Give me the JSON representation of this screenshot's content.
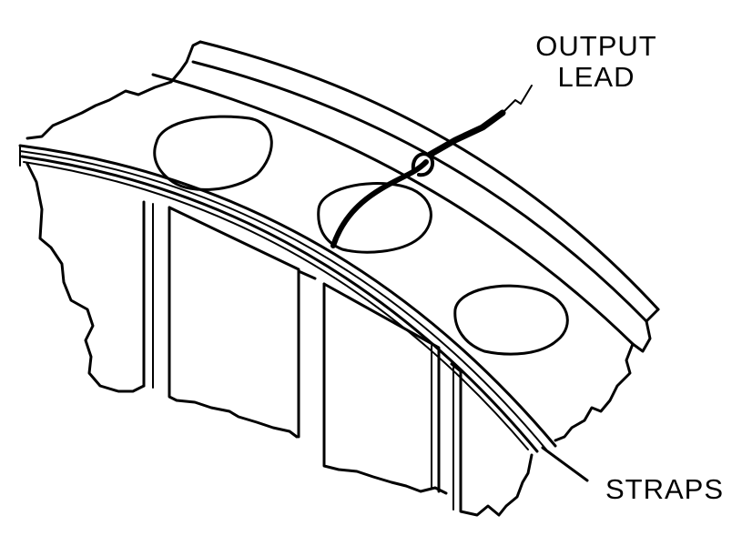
{
  "diagram": {
    "labels": {
      "output_lead": [
        "OUTPUT",
        "LEAD"
      ],
      "straps": "STRAPS"
    },
    "colors": {
      "ink": "#000000",
      "background": "#ffffff"
    }
  }
}
